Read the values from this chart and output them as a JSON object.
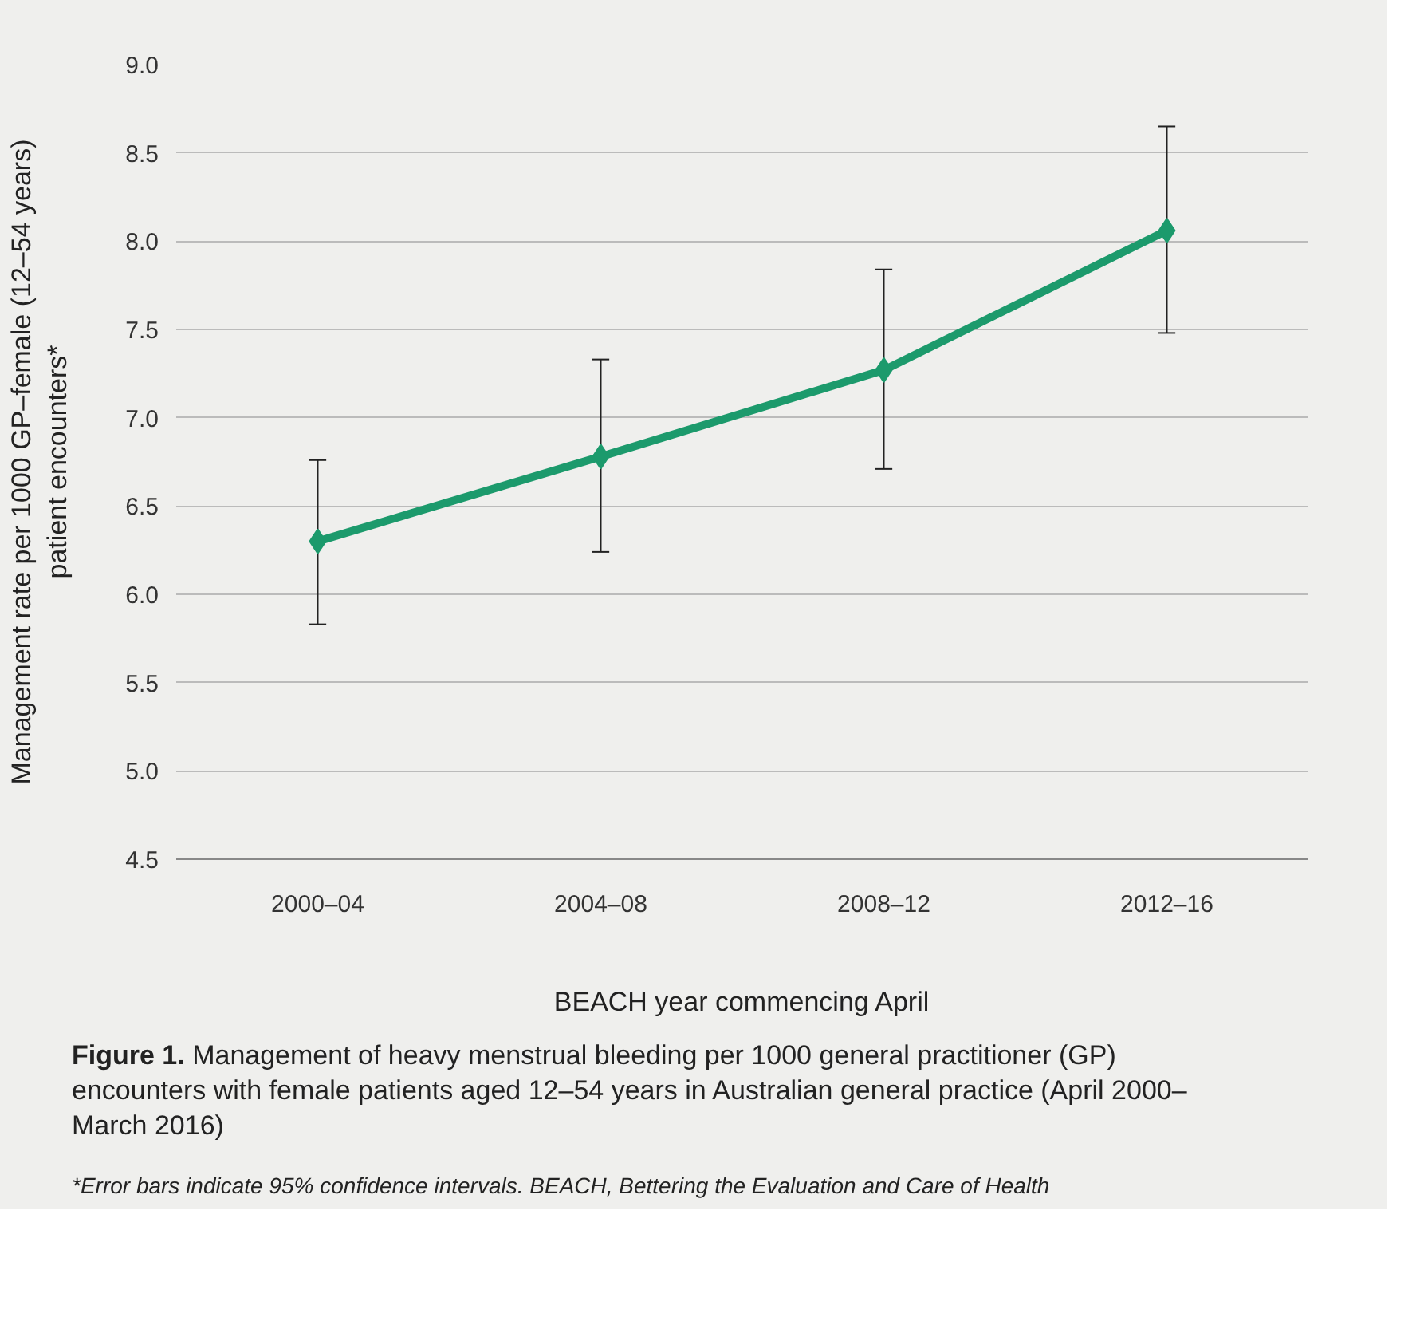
{
  "chart_data": {
    "type": "line",
    "title": "Figure 1.",
    "subtitle": "Management of heavy menstrual bleeding per 1000 general practitioner (GP) encounters with female patients aged 12–54 years in Australian general practice (April 2000–March 2016)",
    "annotations": [
      "*Error bars indicate 95% confidence intervals. BEACH, Bettering the Evaluation and Care of Health"
    ],
    "xlabel": "BEACH year commencing April",
    "ylabel": "Management rate per 1000 GP–female (12–54 years)\npatient encounters*",
    "categories": [
      "2000–04",
      "2004–08",
      "2008–12",
      "2012–16"
    ],
    "series": [
      {
        "color": "#1c9a6c",
        "values": [
          6.3,
          6.78,
          7.27,
          8.06
        ],
        "errors": [
          [
            5.83,
            6.76
          ],
          [
            6.24,
            7.33
          ],
          [
            6.71,
            7.84
          ],
          [
            7.48,
            8.65
          ]
        ]
      }
    ],
    "ylim": [
      4.5,
      9.0
    ],
    "yticks": [
      {
        "value": 4.5,
        "label": "4.5"
      },
      {
        "value": 5.0,
        "label": "5.0"
      },
      {
        "value": 5.5,
        "label": "5.5"
      },
      {
        "value": 6.0,
        "label": "6.0"
      },
      {
        "value": 6.5,
        "label": "6.5"
      },
      {
        "value": 7.0,
        "label": "7.0"
      },
      {
        "value": 7.5,
        "label": "7.5"
      },
      {
        "value": 8.0,
        "label": "8.0"
      },
      {
        "value": 8.5,
        "label": "8.5"
      },
      {
        "value": 9.0,
        "label": "9.0"
      }
    ],
    "grid": "y",
    "marker": "diamond",
    "line_style": "solid"
  }
}
